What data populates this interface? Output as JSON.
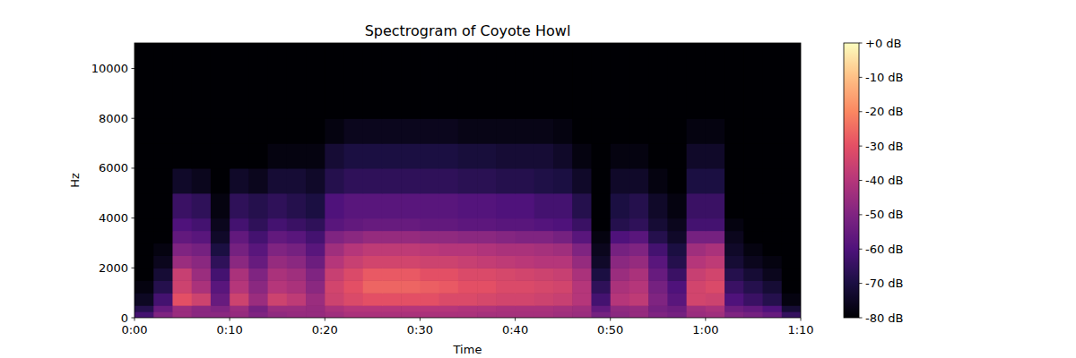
{
  "chart_data": {
    "type": "heatmap",
    "title": "Spectrogram of Coyote Howl",
    "x_label": "Time",
    "y_label": "Hz",
    "x_bins": [
      0,
      2,
      4,
      6,
      8,
      10,
      12,
      14,
      16,
      18,
      20,
      22,
      24,
      26,
      28,
      30,
      32,
      34,
      36,
      38,
      40,
      42,
      44,
      46,
      48,
      50,
      52,
      54,
      56,
      58,
      60,
      62,
      64,
      66,
      68,
      70
    ],
    "y_bins": [
      0,
      250,
      500,
      1000,
      1500,
      2000,
      2500,
      3000,
      3500,
      4000,
      5000,
      6000,
      7000,
      8000,
      11025
    ],
    "values": [
      [
        -62,
        -50,
        -45,
        -48,
        -48,
        -46,
        -50,
        -47,
        -46,
        -46,
        -44,
        -42,
        -42,
        -42,
        -42,
        -42,
        -42,
        -42,
        -43,
        -43,
        -43,
        -43,
        -44,
        -45,
        -52,
        -48,
        -46,
        -50,
        -52,
        -45,
        -44,
        -50,
        -52,
        -55,
        -65
      ],
      [
        -68,
        -55,
        -45,
        -48,
        -50,
        -45,
        -52,
        -45,
        -45,
        -46,
        -42,
        -40,
        -40,
        -40,
        -40,
        -40,
        -40,
        -41,
        -41,
        -42,
        -42,
        -42,
        -43,
        -44,
        -56,
        -47,
        -46,
        -52,
        -54,
        -44,
        -42,
        -54,
        -56,
        -60,
        -72
      ],
      [
        -75,
        -62,
        -30,
        -35,
        -55,
        -35,
        -45,
        -35,
        -38,
        -45,
        -35,
        -32,
        -30,
        -30,
        -30,
        -30,
        -32,
        -32,
        -33,
        -34,
        -34,
        -35,
        -36,
        -40,
        -62,
        -40,
        -38,
        -50,
        -58,
        -34,
        -35,
        -60,
        -64,
        -68,
        -78
      ],
      [
        -78,
        -68,
        -35,
        -42,
        -58,
        -40,
        -48,
        -40,
        -42,
        -48,
        -34,
        -30,
        -26,
        -26,
        -26,
        -27,
        -28,
        -30,
        -30,
        -32,
        -32,
        -33,
        -34,
        -40,
        -66,
        -42,
        -40,
        -52,
        -60,
        -34,
        -32,
        -64,
        -68,
        -72,
        -80
      ],
      [
        -80,
        -72,
        -36,
        -45,
        -62,
        -42,
        -50,
        -42,
        -44,
        -50,
        -36,
        -32,
        -28,
        -28,
        -28,
        -30,
        -30,
        -32,
        -32,
        -33,
        -34,
        -35,
        -36,
        -42,
        -70,
        -45,
        -42,
        -55,
        -64,
        -36,
        -34,
        -68,
        -72,
        -76,
        -80
      ],
      [
        -80,
        -76,
        -45,
        -48,
        -66,
        -48,
        -55,
        -46,
        -48,
        -54,
        -40,
        -36,
        -34,
        -34,
        -34,
        -35,
        -35,
        -36,
        -37,
        -38,
        -39,
        -40,
        -40,
        -46,
        -74,
        -48,
        -46,
        -58,
        -68,
        -40,
        -38,
        -72,
        -76,
        -78,
        -80
      ],
      [
        -80,
        -78,
        -50,
        -52,
        -70,
        -52,
        -58,
        -50,
        -52,
        -58,
        -44,
        -40,
        -38,
        -38,
        -38,
        -39,
        -40,
        -40,
        -41,
        -42,
        -42,
        -43,
        -44,
        -50,
        -76,
        -52,
        -50,
        -62,
        -70,
        -44,
        -42,
        -74,
        -78,
        -80,
        -80
      ],
      [
        -80,
        -80,
        -56,
        -58,
        -74,
        -56,
        -62,
        -56,
        -58,
        -62,
        -50,
        -48,
        -46,
        -46,
        -46,
        -47,
        -47,
        -48,
        -48,
        -49,
        -50,
        -50,
        -52,
        -58,
        -78,
        -60,
        -58,
        -68,
        -74,
        -52,
        -52,
        -76,
        -80,
        -80,
        -80
      ],
      [
        -80,
        -80,
        -60,
        -62,
        -76,
        -62,
        -66,
        -62,
        -64,
        -66,
        -58,
        -56,
        -55,
        -55,
        -55,
        -56,
        -56,
        -57,
        -57,
        -58,
        -58,
        -59,
        -60,
        -64,
        -80,
        -68,
        -66,
        -72,
        -76,
        -62,
        -62,
        -78,
        -80,
        -80,
        -80
      ],
      [
        -80,
        -80,
        -64,
        -66,
        -78,
        -66,
        -68,
        -66,
        -68,
        -70,
        -60,
        -58,
        -58,
        -58,
        -58,
        -58,
        -58,
        -59,
        -59,
        -60,
        -60,
        -62,
        -62,
        -68,
        -80,
        -70,
        -68,
        -74,
        -78,
        -64,
        -64,
        -80,
        -80,
        -80,
        -80
      ],
      [
        -80,
        -80,
        -74,
        -76,
        -80,
        -74,
        -76,
        -72,
        -72,
        -74,
        -68,
        -66,
        -66,
        -66,
        -66,
        -66,
        -66,
        -67,
        -67,
        -68,
        -68,
        -69,
        -70,
        -74,
        -80,
        -74,
        -74,
        -78,
        -80,
        -70,
        -70,
        -80,
        -80,
        -80,
        -80
      ],
      [
        -80,
        -80,
        -80,
        -80,
        -80,
        -80,
        -80,
        -78,
        -78,
        -78,
        -72,
        -70,
        -70,
        -70,
        -70,
        -70,
        -70,
        -71,
        -71,
        -72,
        -72,
        -72,
        -74,
        -78,
        -80,
        -78,
        -78,
        -80,
        -80,
        -74,
        -74,
        -80,
        -80,
        -80,
        -80
      ],
      [
        -80,
        -80,
        -80,
        -80,
        -80,
        -80,
        -80,
        -80,
        -80,
        -80,
        -78,
        -76,
        -76,
        -76,
        -76,
        -76,
        -76,
        -77,
        -77,
        -77,
        -77,
        -77,
        -78,
        -80,
        -80,
        -80,
        -80,
        -80,
        -80,
        -78,
        -78,
        -80,
        -80,
        -80,
        -80
      ],
      [
        -80,
        -80,
        -80,
        -80,
        -80,
        -80,
        -80,
        -80,
        -80,
        -80,
        -80,
        -80,
        -80,
        -80,
        -80,
        -80,
        -80,
        -80,
        -80,
        -80,
        -80,
        -80,
        -80,
        -80,
        -80,
        -80,
        -80,
        -80,
        -80,
        -80,
        -80,
        -80,
        -80,
        -80,
        -80
      ]
    ],
    "xlim": [
      0,
      70
    ],
    "xticks": [
      {
        "value": 0,
        "label": "0:00"
      },
      {
        "value": 10,
        "label": "0:10"
      },
      {
        "value": 20,
        "label": "0:20"
      },
      {
        "value": 30,
        "label": "0:30"
      },
      {
        "value": 40,
        "label": "0:40"
      },
      {
        "value": 50,
        "label": "0:50"
      },
      {
        "value": 60,
        "label": "1:00"
      },
      {
        "value": 70,
        "label": "1:10"
      }
    ],
    "ylim": [
      0,
      11025
    ],
    "yticks": [
      0,
      2000,
      4000,
      6000,
      8000,
      10000
    ],
    "color": "magma",
    "zlim": [
      -80,
      0
    ],
    "zticks": [
      {
        "value": 0,
        "label": "+0 dB"
      },
      {
        "value": -10,
        "label": "-10 dB"
      },
      {
        "value": -20,
        "label": "-20 dB"
      },
      {
        "value": -30,
        "label": "-30 dB"
      },
      {
        "value": -40,
        "label": "-40 dB"
      },
      {
        "value": -50,
        "label": "-50 dB"
      },
      {
        "value": -60,
        "label": "-60 dB"
      },
      {
        "value": -70,
        "label": "-70 dB"
      },
      {
        "value": -80,
        "label": "-80 dB"
      }
    ]
  }
}
